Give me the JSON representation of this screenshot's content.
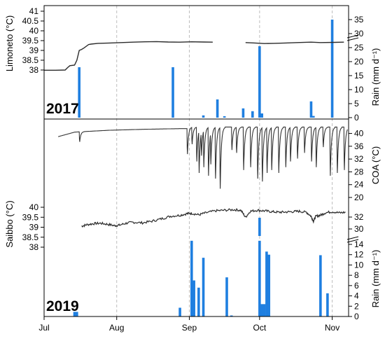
{
  "chart_data": [
    {
      "panel": "top",
      "type": "line+bar",
      "year_label": "2017",
      "left_axis": {
        "label": "Limoneto (°C)",
        "range": [
          37,
          41
        ],
        "ticks": [
          "41",
          "40.5",
          "40",
          "39.5",
          "39",
          "38.5",
          "38"
        ]
      },
      "right_axis": {
        "label": "Rain (mm d⁻¹)",
        "range": [
          0,
          40
        ],
        "ticks": [
          "35",
          "30",
          "25",
          "20",
          "15",
          "10",
          "5",
          "0"
        ]
      },
      "temperature_series": [
        {
          "doy": 182,
          "t": 37.99
        },
        {
          "doy": 183,
          "t": 37.99
        },
        {
          "doy": 187,
          "t": 37.99
        },
        {
          "doy": 191,
          "t": 38.0
        },
        {
          "doy": 192,
          "t": 38.12
        },
        {
          "doy": 193,
          "t": 38.22
        },
        {
          "doy": 195,
          "t": 38.25
        },
        {
          "doy": 196,
          "t": 38.5
        },
        {
          "doy": 197,
          "t": 39.0
        },
        {
          "doy": 198,
          "t": 39.05
        },
        {
          "doy": 199,
          "t": 39.12
        },
        {
          "doy": 201,
          "t": 39.3
        },
        {
          "doy": 202,
          "t": 39.32
        },
        {
          "doy": 205,
          "t": 39.36
        },
        {
          "doy": 210,
          "t": 39.38
        },
        {
          "doy": 215,
          "t": 39.4
        },
        {
          "doy": 220,
          "t": 39.42
        },
        {
          "doy": 225,
          "t": 39.44
        },
        {
          "doy": 230,
          "t": 39.45
        },
        {
          "doy": 235,
          "t": 39.43
        },
        {
          "doy": 240,
          "t": 39.42
        },
        {
          "doy": 245,
          "t": 39.44
        },
        {
          "doy": 250,
          "t": 39.43
        },
        {
          "doy": 254,
          "t": 39.42
        },
        {
          "doy": null,
          "t": null
        },
        {
          "doy": 268,
          "t": 39.4
        },
        {
          "doy": 272,
          "t": 39.38
        },
        {
          "doy": 276,
          "t": 39.35
        },
        {
          "doy": 280,
          "t": 39.36
        },
        {
          "doy": 285,
          "t": 39.38
        },
        {
          "doy": 290,
          "t": 39.4
        },
        {
          "doy": 296,
          "t": 39.42
        },
        {
          "doy": 300,
          "t": 39.4
        },
        {
          "doy": 306,
          "t": 39.41
        },
        {
          "doy": 310,
          "t": 39.42
        }
      ],
      "rain_bars": [
        {
          "doy": 197,
          "mm": 18.0
        },
        {
          "doy": 237,
          "mm": 18.0
        },
        {
          "doy": 250,
          "mm": 0.8
        },
        {
          "doy": 256,
          "mm": 6.5
        },
        {
          "doy": 259,
          "mm": 0.5
        },
        {
          "doy": 267,
          "mm": 3.3
        },
        {
          "doy": 271,
          "mm": 2.3
        },
        {
          "doy": 274,
          "mm": 25.5
        },
        {
          "doy": 275,
          "mm": 1.5
        },
        {
          "doy": 296,
          "mm": 5.8
        },
        {
          "doy": 297,
          "mm": 0.6
        },
        {
          "doy": 305,
          "mm": 35.0
        }
      ]
    },
    {
      "panel": "bottom",
      "type": "line+bar",
      "year_label": "2019",
      "x_axis": {
        "ticks": [
          "Jul",
          "Aug",
          "Sep",
          "Oct",
          "Nov"
        ],
        "tick_doy": [
          182,
          213,
          244,
          274,
          305
        ],
        "range": [
          182,
          312
        ]
      },
      "left_axis": {
        "label": "Saibbo (°C)",
        "range": [
          37,
          40.5
        ],
        "ticks": [
          "40",
          "39.5",
          "39",
          "38.5",
          "38"
        ]
      },
      "right_axis_coa": {
        "label": "COA (°C)",
        "range": [
          16,
          42
        ],
        "ticks": [
          "40",
          "36",
          "32",
          "28",
          "24",
          "20"
        ]
      },
      "right_axis_saibbo": {
        "ticks": [
          "32",
          "30"
        ]
      },
      "right_axis_rain": {
        "label": "Rain (mm d⁻¹)",
        "range": [
          0,
          15
        ],
        "ticks": [
          "14",
          "12",
          "10",
          "8",
          "6",
          "4",
          "2",
          "0"
        ]
      },
      "coa_series": {
        "base": [
          {
            "doy": 188,
            "t": 39.0
          },
          {
            "doy": 195,
            "t": 40.4
          },
          {
            "doy": 197,
            "t": 40.5
          },
          {
            "doy": 210,
            "t": 41.0
          },
          {
            "doy": 225,
            "t": 41.3
          },
          {
            "doy": 240,
            "t": 41.5
          },
          {
            "doy": 243,
            "t": 41.5
          },
          {
            "doy": 244,
            "t": 42.0
          },
          {
            "doy": 312,
            "t": 42.0
          }
        ],
        "dips": [
          {
            "doy": 197,
            "min": 37.0
          },
          {
            "doy": 243,
            "min": 32.5
          },
          {
            "doy": 245,
            "min": 36.0
          },
          {
            "doy": 247,
            "min": 30.0
          },
          {
            "doy": 248,
            "min": 26.0
          },
          {
            "doy": 249,
            "min": 32.0
          },
          {
            "doy": 250,
            "min": 28.0
          },
          {
            "doy": 252,
            "min": 25.0
          },
          {
            "doy": 253,
            "min": 29.0
          },
          {
            "doy": 255,
            "min": 24.0
          },
          {
            "doy": 257,
            "min": 20.5
          },
          {
            "doy": 262,
            "min": 34.0
          },
          {
            "doy": 264,
            "min": 33.0
          },
          {
            "doy": 267,
            "min": 27.0
          },
          {
            "doy": 270,
            "min": 28.0
          },
          {
            "doy": 273,
            "min": 24.0
          },
          {
            "doy": 275,
            "min": 23.0
          },
          {
            "doy": 277,
            "min": 26.0
          },
          {
            "doy": 279,
            "min": 27.0
          },
          {
            "doy": 282,
            "min": 26.0
          },
          {
            "doy": 285,
            "min": 28.0
          },
          {
            "doy": 287,
            "min": 30.0
          },
          {
            "doy": 290,
            "min": 31.0
          },
          {
            "doy": 293,
            "min": 33.0
          },
          {
            "doy": 296,
            "min": 30.0
          },
          {
            "doy": 298,
            "min": 28.0
          },
          {
            "doy": 301,
            "min": 35.0
          },
          {
            "doy": 304,
            "min": 25.0
          },
          {
            "doy": 307,
            "min": 26.0
          },
          {
            "doy": 310,
            "min": 27.0
          }
        ]
      },
      "saibbo_series": [
        {
          "doy": 198,
          "t": 39.05
        },
        {
          "doy": 200,
          "t": 39.12
        },
        {
          "doy": 203,
          "t": 39.18
        },
        {
          "doy": 206,
          "t": 39.2
        },
        {
          "doy": 209,
          "t": 39.15
        },
        {
          "doy": 212,
          "t": 39.08
        },
        {
          "doy": 214,
          "t": 39.1
        },
        {
          "doy": 217,
          "t": 39.2
        },
        {
          "doy": 220,
          "t": 39.25
        },
        {
          "doy": 224,
          "t": 39.22
        },
        {
          "doy": 228,
          "t": 39.3
        },
        {
          "doy": 232,
          "t": 39.42
        },
        {
          "doy": 236,
          "t": 39.55
        },
        {
          "doy": 240,
          "t": 39.6
        },
        {
          "doy": 243,
          "t": 39.68
        },
        {
          "doy": 245,
          "t": 39.7
        },
        {
          "doy": 248,
          "t": 39.62
        },
        {
          "doy": 251,
          "t": 39.72
        },
        {
          "doy": 255,
          "t": 39.82
        },
        {
          "doy": 259,
          "t": 39.85
        },
        {
          "doy": 263,
          "t": 39.88
        },
        {
          "doy": 266,
          "t": 39.85
        },
        {
          "doy": 268,
          "t": 39.5
        },
        {
          "doy": 270,
          "t": 39.8
        },
        {
          "doy": 273,
          "t": 39.85
        },
        {
          "doy": 276,
          "t": 39.82
        },
        {
          "doy": 279,
          "t": 39.78
        },
        {
          "doy": 282,
          "t": 39.75
        },
        {
          "doy": 285,
          "t": 39.76
        },
        {
          "doy": 288,
          "t": 39.78
        },
        {
          "doy": 291,
          "t": 39.8
        },
        {
          "doy": 294,
          "t": 39.75
        },
        {
          "doy": 296,
          "t": 39.55
        },
        {
          "doy": 297,
          "t": 39.3
        },
        {
          "doy": 298,
          "t": 39.55
        },
        {
          "doy": 300,
          "t": 39.6
        },
        {
          "doy": 302,
          "t": 39.72
        },
        {
          "doy": 305,
          "t": 39.78
        },
        {
          "doy": 308,
          "t": 39.72
        },
        {
          "doy": 311,
          "t": 39.75
        }
      ],
      "rain_bars": [
        {
          "doy": 195,
          "mm": 0.9
        },
        {
          "doy": 196,
          "mm": 0.9
        },
        {
          "doy": 240,
          "mm": 1.7
        },
        {
          "doy": 245,
          "mm": 14.7
        },
        {
          "doy": 246,
          "mm": 7.0
        },
        {
          "doy": 248,
          "mm": 5.6
        },
        {
          "doy": 250,
          "mm": 11.4
        },
        {
          "doy": 260,
          "mm": 7.6
        },
        {
          "doy": 262,
          "mm": 0.2
        },
        {
          "doy": 274,
          "mm": 14.7
        },
        {
          "doy": 275,
          "mm": 2.4
        },
        {
          "doy": 276,
          "mm": 2.4
        },
        {
          "doy": 277,
          "mm": 12.6
        },
        {
          "doy": 278,
          "mm": 12.0
        },
        {
          "doy": 300,
          "mm": 11.9
        },
        {
          "doy": 303,
          "mm": 4.5
        }
      ],
      "rain_break_bar": {
        "doy": 274,
        "label_note": "exceeds scale"
      }
    }
  ]
}
